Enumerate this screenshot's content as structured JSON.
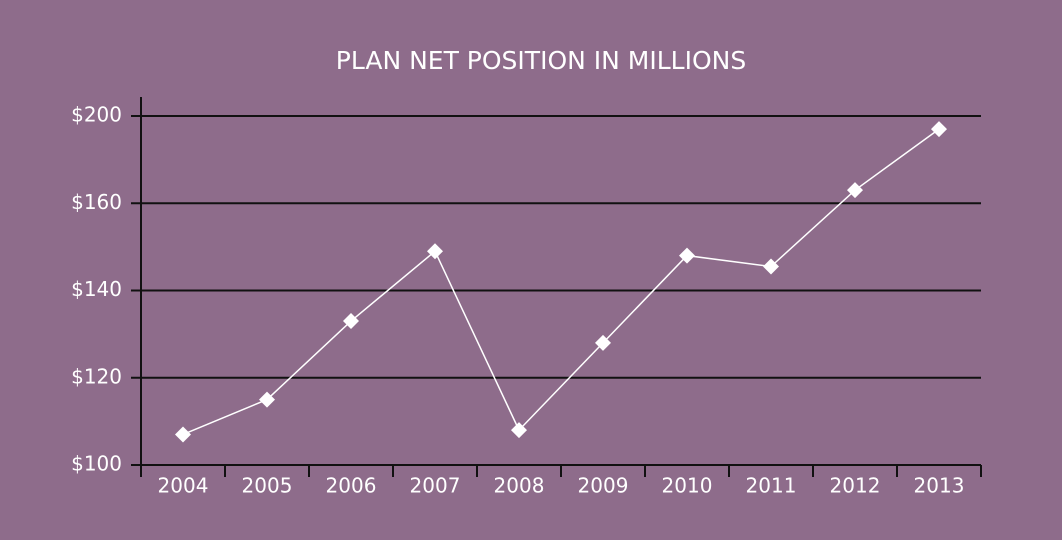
{
  "chart_data": {
    "type": "line",
    "title": "PLAN NET POSITION IN MILLIONS",
    "categories": [
      "2004",
      "2005",
      "2006",
      "2007",
      "2008",
      "2009",
      "2010",
      "2011",
      "2012",
      "2013"
    ],
    "series": [
      {
        "name": "Plan Net Position",
        "color": "#ffffff",
        "values": [
          107,
          115,
          133,
          149,
          108,
          128,
          148,
          145.5,
          166,
          194
        ]
      }
    ],
    "ylim": [
      100,
      200
    ],
    "yticks": [
      {
        "value": 100,
        "label": "$100"
      },
      {
        "value": 120,
        "label": "$120"
      },
      {
        "value": 140,
        "label": "$140"
      },
      {
        "value": 160,
        "label": "$160"
      },
      {
        "value": 200,
        "label": "$200"
      }
    ],
    "grid": true
  }
}
